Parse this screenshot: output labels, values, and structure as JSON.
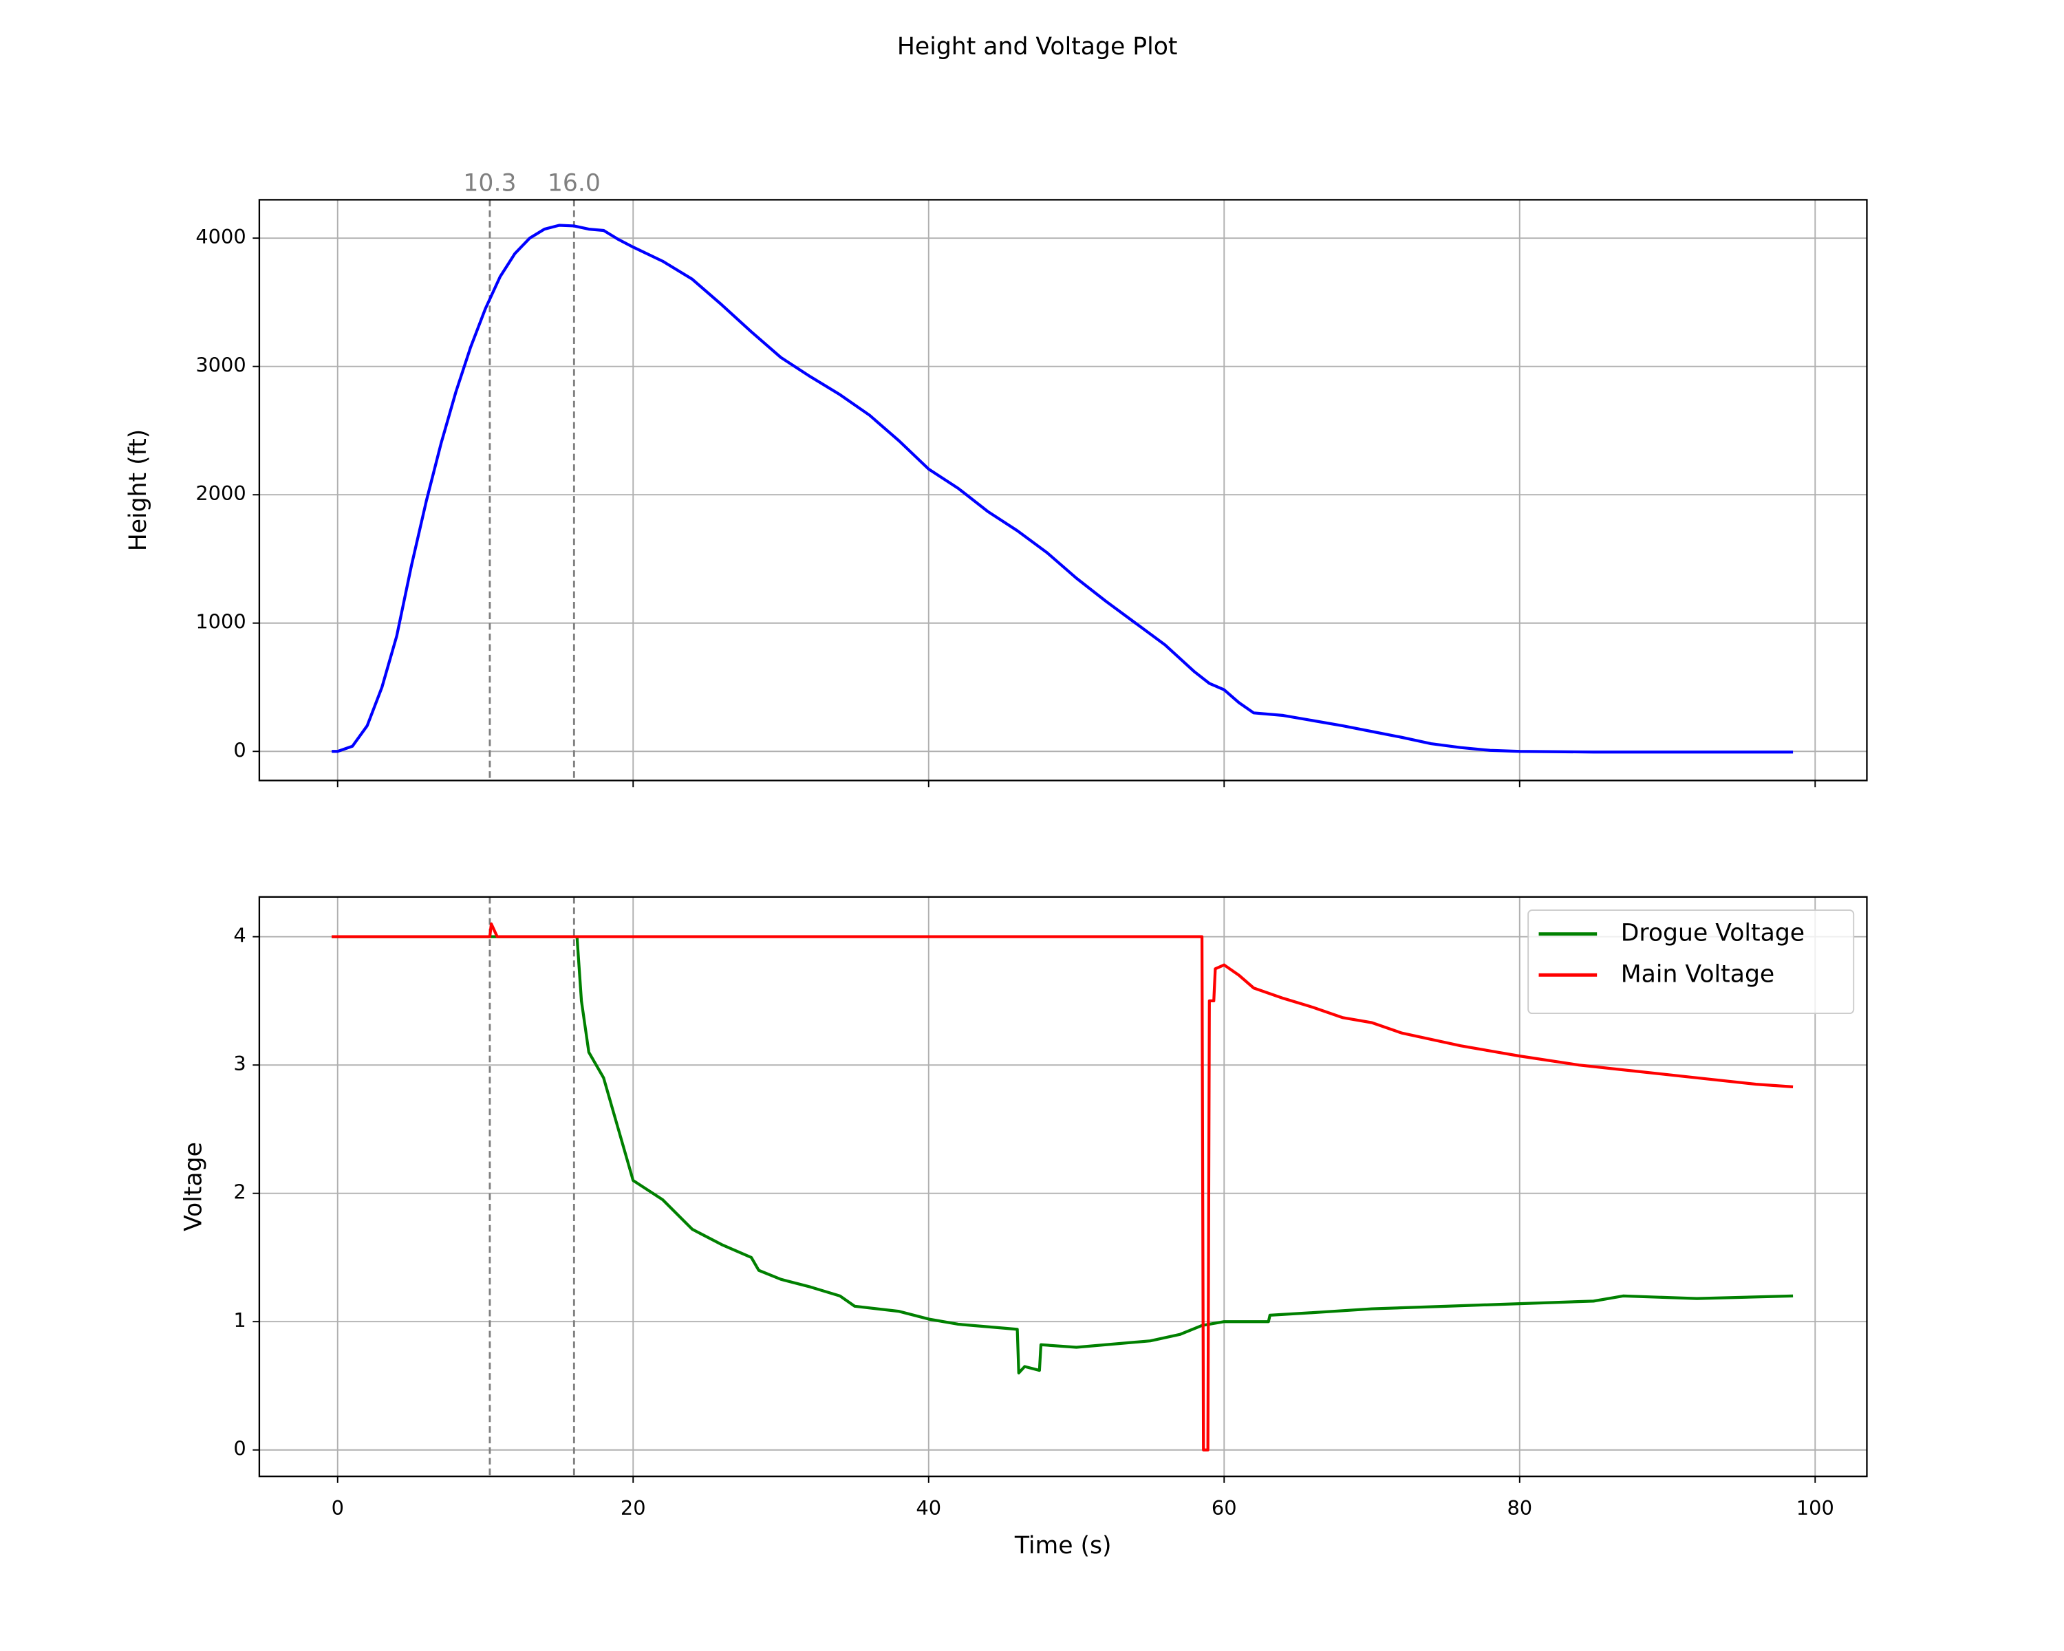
{
  "title": "Height and Voltage Plot",
  "chart_data": [
    {
      "type": "line",
      "ylabel": "Height (ft)",
      "xlim": [
        -5.3,
        103.5
      ],
      "ylim": [
        -227,
        4299
      ],
      "xticks": [
        0,
        20,
        40,
        60,
        80,
        100
      ],
      "yticks": [
        0,
        1000,
        2000,
        3000,
        4000
      ],
      "grid": true,
      "vlines": [
        {
          "value": 10.3,
          "label": "10.3"
        },
        {
          "value": 16.0,
          "label": "16.0"
        }
      ],
      "series": [
        {
          "name": "Height",
          "color": "#0000ff",
          "x": [
            -0.4,
            0,
            1,
            2,
            3,
            4,
            5,
            6,
            7,
            8,
            9,
            10,
            11,
            12,
            13,
            14,
            15,
            16,
            17,
            18,
            19,
            20,
            22,
            24,
            26,
            28,
            30,
            32,
            34,
            36,
            38,
            40,
            42,
            44,
            46,
            48,
            50,
            52,
            54,
            56,
            58,
            59,
            60,
            61,
            62,
            64,
            66,
            68,
            70,
            72,
            74,
            76,
            78,
            80,
            85,
            90,
            95,
            98.5
          ],
          "values": [
            0,
            0,
            40,
            200,
            500,
            900,
            1450,
            1950,
            2400,
            2800,
            3150,
            3450,
            3700,
            3880,
            4000,
            4070,
            4100,
            4095,
            4070,
            4060,
            3990,
            3930,
            3820,
            3680,
            3480,
            3270,
            3070,
            2920,
            2780,
            2620,
            2420,
            2200,
            2050,
            1870,
            1720,
            1550,
            1350,
            1170,
            1000,
            830,
            620,
            530,
            480,
            380,
            300,
            280,
            240,
            200,
            155,
            110,
            60,
            30,
            8,
            0,
            -5,
            -5,
            -5,
            -5
          ]
        }
      ]
    },
    {
      "type": "line",
      "xlabel": "Time (s)",
      "ylabel": "Voltage",
      "xlim": [
        -5.3,
        103.5
      ],
      "ylim": [
        -0.206,
        4.31
      ],
      "xticks": [
        0,
        20,
        40,
        60,
        80,
        100
      ],
      "yticks": [
        0,
        1,
        2,
        3,
        4
      ],
      "grid": true,
      "legend": "upper right",
      "series": [
        {
          "name": "Drogue Voltage",
          "color": "#008000",
          "x": [
            -0.4,
            16,
            16.2,
            16.5,
            17,
            18,
            19,
            20,
            22,
            24,
            26,
            28,
            28.5,
            30,
            32,
            34,
            35,
            38,
            40,
            42,
            45,
            46,
            46.1,
            46.5,
            47.5,
            47.6,
            50,
            52,
            55,
            57,
            58.5,
            60,
            63,
            63.1,
            66,
            70,
            75,
            80,
            85,
            87,
            92,
            98.5
          ],
          "values": [
            4.0,
            4.0,
            4.0,
            3.5,
            3.1,
            2.9,
            2.5,
            2.1,
            1.95,
            1.72,
            1.6,
            1.5,
            1.4,
            1.33,
            1.27,
            1.2,
            1.12,
            1.08,
            1.02,
            0.98,
            0.95,
            0.94,
            0.6,
            0.65,
            0.62,
            0.82,
            0.8,
            0.82,
            0.85,
            0.9,
            0.97,
            1.0,
            1.0,
            1.05,
            1.07,
            1.1,
            1.12,
            1.14,
            1.16,
            1.2,
            1.18,
            1.2
          ]
        },
        {
          "name": "Main Voltage",
          "color": "#ff0000",
          "x": [
            -0.4,
            10.3,
            10.4,
            10.8,
            30,
            58.5,
            58.6,
            58.9,
            59,
            59.3,
            59.4,
            60,
            61,
            62,
            64,
            66,
            68,
            70,
            72,
            76,
            80,
            84,
            88,
            92,
            96,
            98.5
          ],
          "values": [
            4.0,
            4.0,
            4.1,
            4.0,
            4.0,
            4.0,
            0,
            0,
            3.5,
            3.5,
            3.75,
            3.78,
            3.7,
            3.6,
            3.52,
            3.45,
            3.37,
            3.33,
            3.25,
            3.15,
            3.07,
            3.0,
            2.95,
            2.9,
            2.85,
            2.83
          ]
        }
      ]
    }
  ]
}
